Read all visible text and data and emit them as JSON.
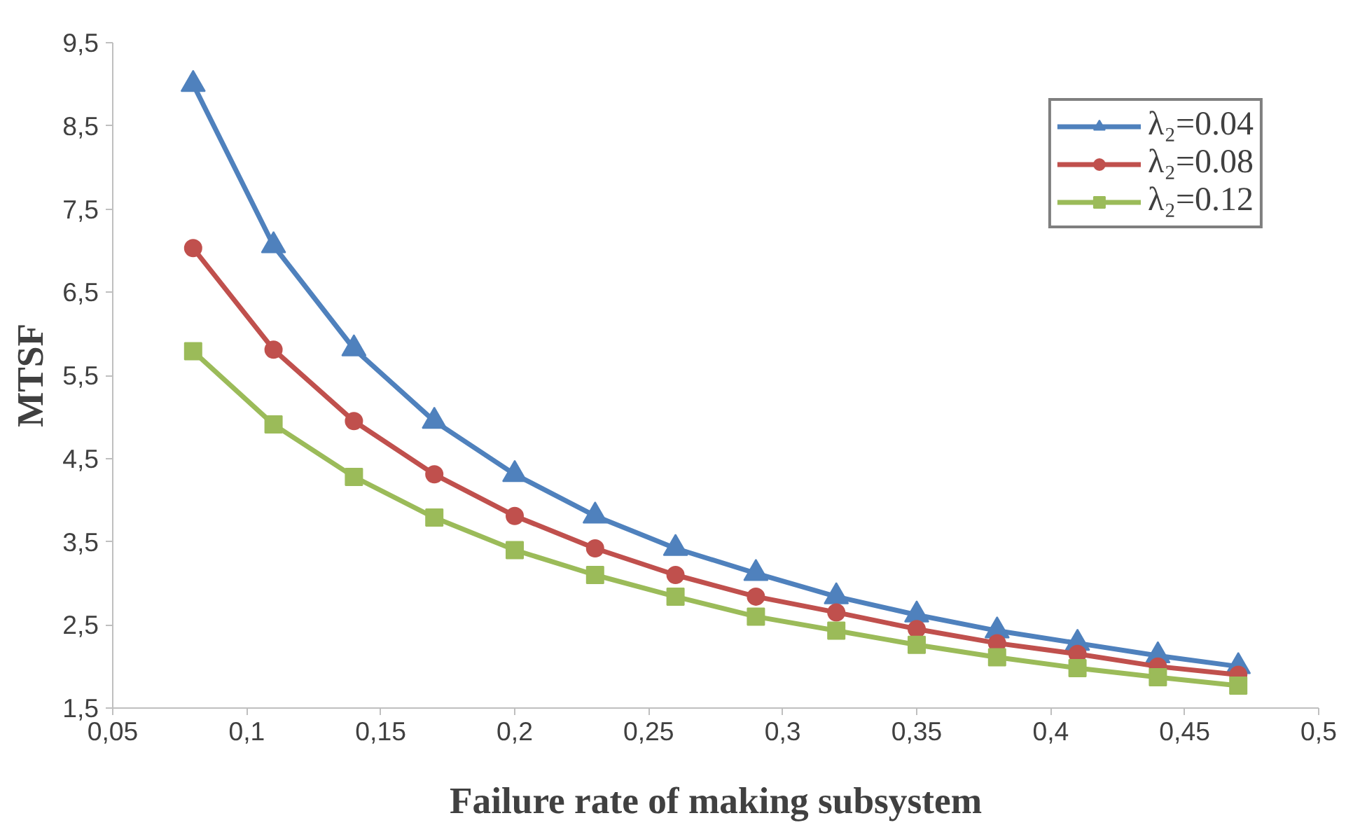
{
  "chart_data": {
    "type": "line",
    "xlabel": "Failure rate of making subsystem",
    "ylabel": "MTSF",
    "x": [
      0.08,
      0.11,
      0.14,
      0.17,
      0.2,
      0.23,
      0.26,
      0.29,
      0.32,
      0.35,
      0.38,
      0.41,
      0.44,
      0.47
    ],
    "series": [
      {
        "name": "λ₂=0.04",
        "color": "#4f81bd",
        "marker": "triangle",
        "values": [
          9.0,
          7.06,
          5.82,
          4.95,
          4.31,
          3.81,
          3.42,
          3.12,
          2.84,
          2.62,
          2.43,
          2.28,
          2.13,
          2.0
        ]
      },
      {
        "name": "λ₂=0.08",
        "color": "#c0504d",
        "marker": "circle",
        "values": [
          7.03,
          5.81,
          4.95,
          4.31,
          3.81,
          3.42,
          3.1,
          2.84,
          2.65,
          2.45,
          2.28,
          2.15,
          2.0,
          1.9
        ]
      },
      {
        "name": "λ₂=0.12",
        "color": "#9bbb59",
        "marker": "square",
        "values": [
          5.79,
          4.91,
          4.28,
          3.79,
          3.4,
          3.1,
          2.84,
          2.6,
          2.43,
          2.26,
          2.11,
          1.98,
          1.87,
          1.77
        ]
      }
    ],
    "xlim": [
      0.05,
      0.5
    ],
    "xticks": [
      {
        "value": 0.05,
        "label": "0,05"
      },
      {
        "value": 0.1,
        "label": "0,1"
      },
      {
        "value": 0.15,
        "label": "0,15"
      },
      {
        "value": 0.2,
        "label": "0,2"
      },
      {
        "value": 0.25,
        "label": "0,25"
      },
      {
        "value": 0.3,
        "label": "0,3"
      },
      {
        "value": 0.35,
        "label": "0,35"
      },
      {
        "value": 0.4,
        "label": "0,4"
      },
      {
        "value": 0.45,
        "label": "0,45"
      },
      {
        "value": 0.5,
        "label": "0,5"
      }
    ],
    "ylim": [
      1.5,
      9.5
    ],
    "yticks": [
      {
        "value": 1.5,
        "label": "1,5"
      },
      {
        "value": 2.5,
        "label": "2,5"
      },
      {
        "value": 3.5,
        "label": "3,5"
      },
      {
        "value": 4.5,
        "label": "4,5"
      },
      {
        "value": 5.5,
        "label": "5,5"
      },
      {
        "value": 6.5,
        "label": "6,5"
      },
      {
        "value": 7.5,
        "label": "7,5"
      },
      {
        "value": 8.5,
        "label": "8,5"
      },
      {
        "value": 9.5,
        "label": "9,5"
      }
    ],
    "grid": false,
    "legend": "top right",
    "line_style": "solid"
  }
}
